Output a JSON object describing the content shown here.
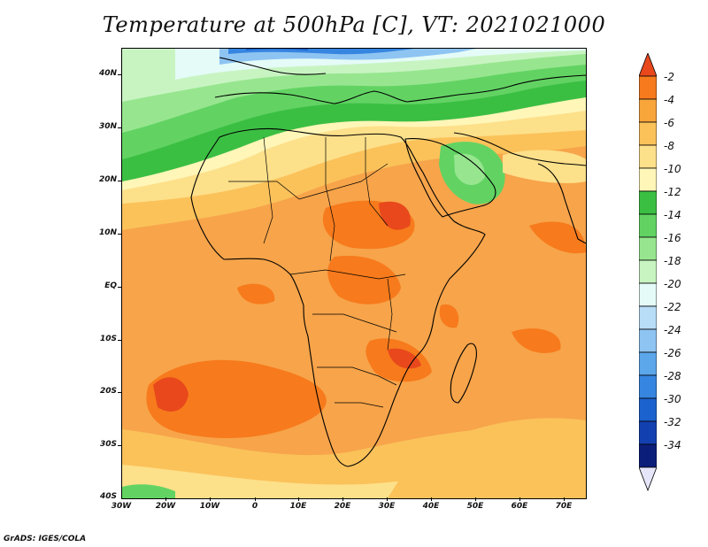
{
  "title": "Temperature at 500hPa [C], VT: 2021021000",
  "credit": "GrADS: IGES/COLA",
  "axes": {
    "lat_labels": [
      "40N",
      "30N",
      "20N",
      "10N",
      "EQ",
      "10S",
      "20S",
      "30S",
      "40S"
    ],
    "lon_labels": [
      "30W",
      "20W",
      "10W",
      "0",
      "10E",
      "20E",
      "30E",
      "40E",
      "50E",
      "60E",
      "70E"
    ]
  },
  "colorbar": {
    "labels": [
      "-2",
      "-4",
      "-6",
      "-8",
      "-10",
      "-12",
      "-14",
      "-16",
      "-18",
      "-20",
      "-22",
      "-24",
      "-26",
      "-28",
      "-30",
      "-32",
      "-34"
    ],
    "colors": [
      "#e8481c",
      "#f77a1c",
      "#f8a53a",
      "#fbc25a",
      "#fde08a",
      "#fff6b8",
      "#3bbf43",
      "#62d363",
      "#97e68f",
      "#c8f4c2",
      "#e4fbf7",
      "#b8ddf7",
      "#8ec4f2",
      "#5ca6ea",
      "#3685e0",
      "#1c62cf",
      "#1340b0",
      "#0b1f7a",
      "#e6e6fb"
    ]
  },
  "map_colors": {
    "ocean_base": "#f7a44a",
    "warm_core": "#e8481c",
    "orange": "#f77a1c",
    "light_orange": "#fbc25a",
    "pale_yellow": "#fde08a",
    "cream": "#fff6b8",
    "green": "#3bbf43",
    "light_green": "#62d363",
    "pale_green": "#97e68f",
    "mint": "#c8f4c2",
    "ice": "#e4fbf7",
    "light_blue": "#8ec4f2",
    "blue": "#3685e0",
    "deep_blue": "#1c62cf"
  }
}
